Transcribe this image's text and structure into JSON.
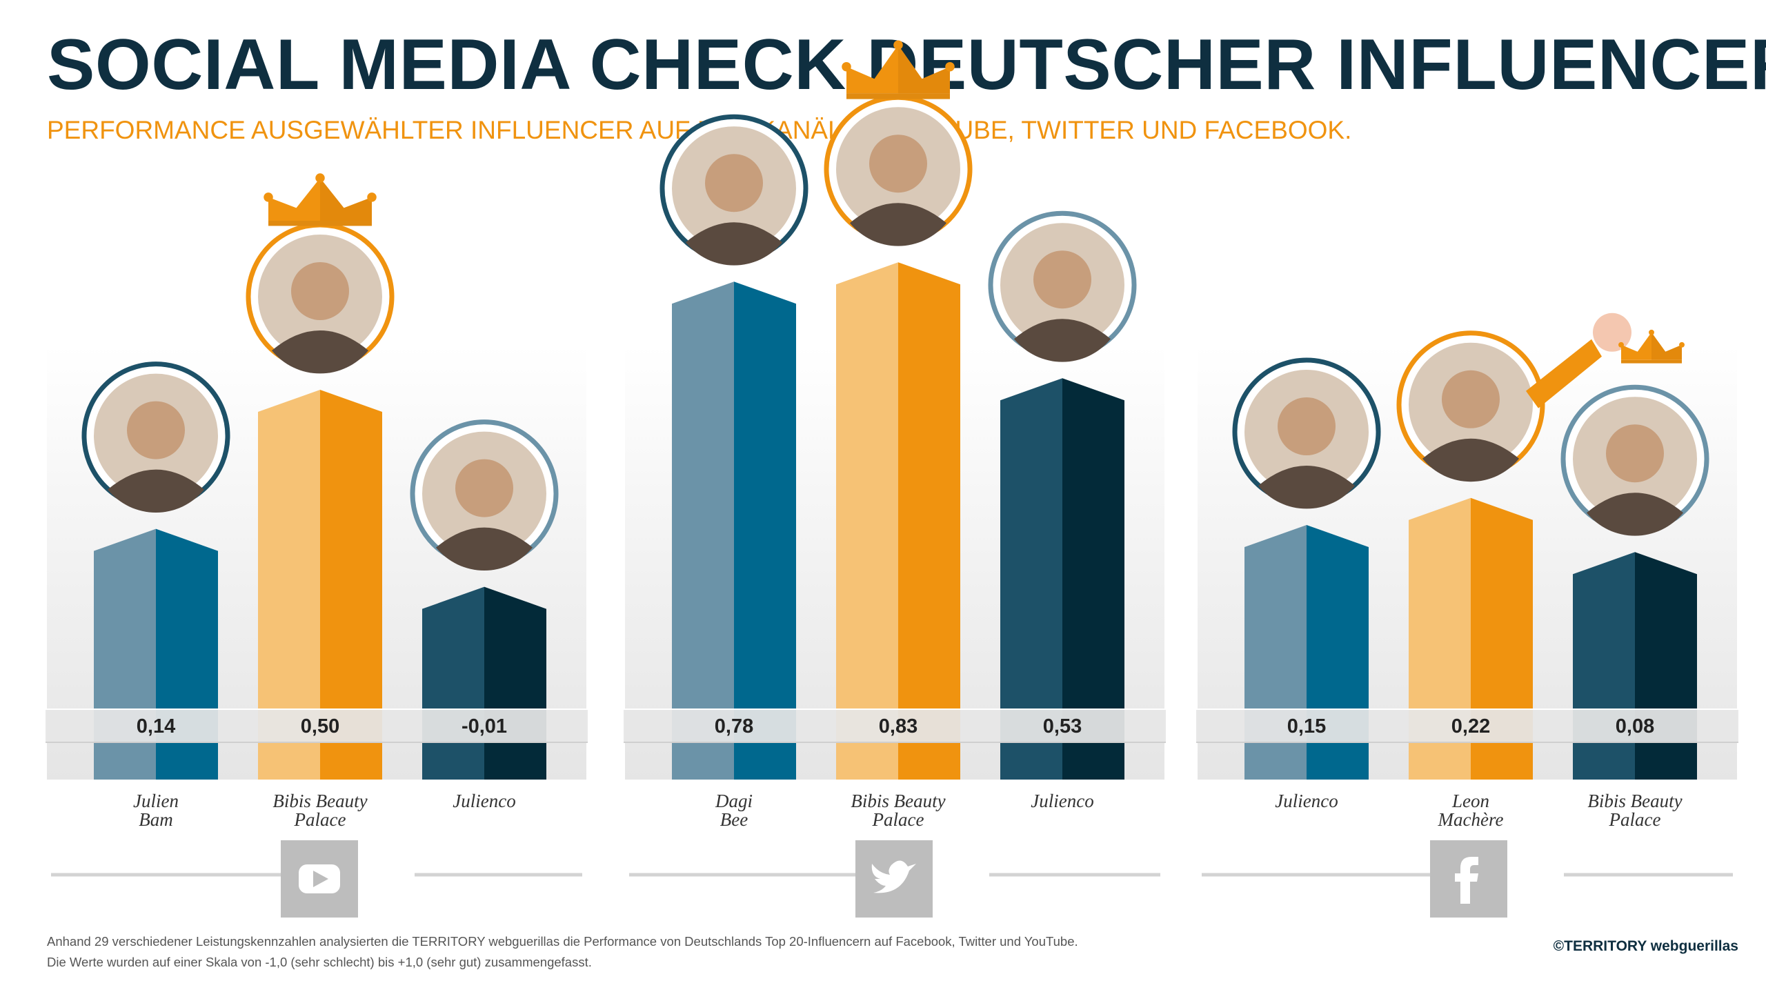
{
  "title": "SOCIAL MEDIA CHECK DEUTSCHER INFLUENCER",
  "subtitle": "PERFORMANCE AUSGEWÄHLTER INFLUENCER AUF DEN KANÄLEN YOUTUBE, TWITTER UND FACEBOOK.",
  "colors": {
    "title": "#0f2f40",
    "accent_orange": "#f0930f",
    "orange_light": "#f6c275",
    "blue_light": "#6b93a8",
    "blue_mid": "#00688e",
    "navy_light": "#1d5168",
    "navy_dark": "#032a39",
    "icon_grey": "#bdbdbd"
  },
  "chart_data": [
    {
      "type": "bar",
      "platform": "YouTube",
      "icon": "youtube-icon",
      "winner": "Bibis Beauty Palace",
      "categories": [
        "Julien Bam",
        "Bibis Beauty Palace",
        "Julienco"
      ],
      "name_lines": [
        [
          "Julien",
          "Bam"
        ],
        [
          "Bibis Beauty",
          "Palace"
        ],
        [
          "Julienco"
        ]
      ],
      "values": [
        0.14,
        0.5,
        -0.01
      ],
      "value_labels": [
        "0,14",
        "0,50",
        "-0,01"
      ],
      "ylim": [
        -1.0,
        1.0
      ]
    },
    {
      "type": "bar",
      "platform": "Twitter",
      "icon": "twitter-icon",
      "winner": "Bibis Beauty Palace",
      "categories": [
        "Dagi Bee",
        "Bibis Beauty Palace",
        "Julienco"
      ],
      "name_lines": [
        [
          "Dagi",
          "Bee"
        ],
        [
          "Bibis Beauty",
          "Palace"
        ],
        [
          "Julienco"
        ]
      ],
      "values": [
        0.78,
        0.83,
        0.53
      ],
      "value_labels": [
        "0,78",
        "0,83",
        "0,53"
      ],
      "ylim": [
        -1.0,
        1.0
      ]
    },
    {
      "type": "bar",
      "platform": "Facebook",
      "icon": "facebook-icon",
      "winner": "Leon Machère",
      "categories": [
        "Julienco",
        "Leon Machère",
        "Bibis Beauty Palace"
      ],
      "name_lines": [
        [
          "Julienco"
        ],
        [
          "Leon",
          "Machère"
        ],
        [
          "Bibis Beauty",
          "Palace"
        ]
      ],
      "values": [
        0.15,
        0.22,
        0.08
      ],
      "value_labels": [
        "0,15",
        "0,22",
        "0,08"
      ],
      "ylim": [
        -1.0,
        1.0
      ]
    }
  ],
  "footnote": [
    "Anhand 29 verschiedener Leistungskennzahlen analysierten die TERRITORY webguerillas die Performance von Deutschlands Top 20-Influencern auf Facebook, Twitter und YouTube.",
    "Die Werte wurden auf einer Skala von -1,0 (sehr schlecht) bis +1,0 (sehr gut) zusammengefasst."
  ],
  "copyright": "©TERRITORY webguerillas"
}
